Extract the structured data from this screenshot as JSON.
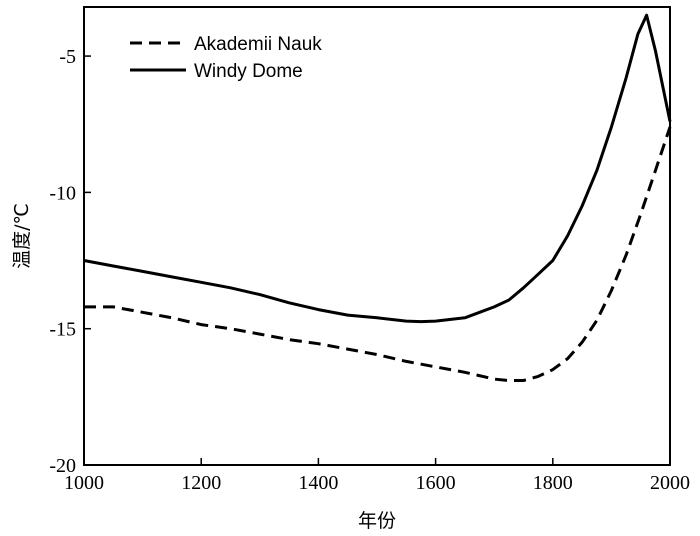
{
  "chart_data": {
    "type": "line",
    "title": "",
    "xlabel": "年份",
    "ylabel": "温度/℃",
    "xlim": [
      1000,
      2000
    ],
    "ylim": [
      -20,
      -3.2
    ],
    "x_ticks": [
      1000,
      1200,
      1400,
      1600,
      1800,
      2000
    ],
    "x_tick_labels": [
      "1000",
      "1200",
      "1400",
      "1600",
      "1800",
      "2000"
    ],
    "y_ticks": [
      -20,
      -15,
      -10,
      -5
    ],
    "y_tick_labels": [
      "-20",
      "-15",
      "-10",
      "-5"
    ],
    "grid": false,
    "legend_position": "top-left",
    "series": [
      {
        "name": "Akademii Nauk",
        "style": "dashed",
        "color": "#000000",
        "x": [
          1000,
          1050,
          1100,
          1150,
          1200,
          1250,
          1300,
          1350,
          1400,
          1450,
          1500,
          1550,
          1600,
          1650,
          1700,
          1725,
          1750,
          1775,
          1800,
          1825,
          1850,
          1875,
          1900,
          1925,
          1950,
          1975,
          2000
        ],
        "y": [
          -14.2,
          -14.2,
          -14.4,
          -14.6,
          -14.85,
          -15.0,
          -15.2,
          -15.4,
          -15.55,
          -15.75,
          -15.95,
          -16.2,
          -16.4,
          -16.6,
          -16.85,
          -16.9,
          -16.9,
          -16.75,
          -16.5,
          -16.1,
          -15.5,
          -14.7,
          -13.6,
          -12.3,
          -10.8,
          -9.2,
          -7.6
        ]
      },
      {
        "name": "Windy Dome",
        "style": "solid",
        "color": "#000000",
        "x": [
          1000,
          1050,
          1100,
          1150,
          1200,
          1250,
          1300,
          1350,
          1400,
          1450,
          1500,
          1550,
          1575,
          1600,
          1650,
          1675,
          1700,
          1725,
          1750,
          1775,
          1800,
          1825,
          1850,
          1875,
          1900,
          1925,
          1945,
          1960,
          1975,
          2000
        ],
        "y": [
          -12.5,
          -12.7,
          -12.9,
          -13.1,
          -13.3,
          -13.5,
          -13.75,
          -14.05,
          -14.3,
          -14.5,
          -14.6,
          -14.72,
          -14.74,
          -14.72,
          -14.6,
          -14.4,
          -14.2,
          -13.95,
          -13.5,
          -13.0,
          -12.5,
          -11.6,
          -10.5,
          -9.2,
          -7.6,
          -5.8,
          -4.2,
          -3.5,
          -4.8,
          -7.4
        ]
      }
    ]
  }
}
